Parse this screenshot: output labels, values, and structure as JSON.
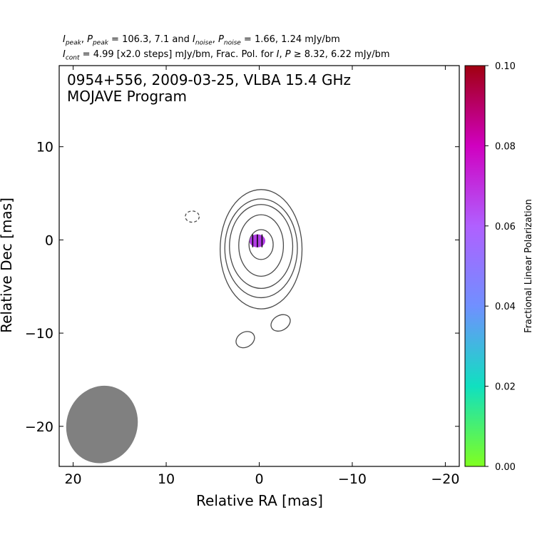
{
  "header": {
    "line1": {
      "i_peak_sym": "I",
      "i_peak_sub": "peak",
      "p_peak_sym": "P",
      "p_peak_sub": "peak",
      "peak_text": " = 106.3, 7.1 and ",
      "i_noise_sym": "I",
      "i_noise_sub": "noise",
      "p_noise_sym": "P",
      "p_noise_sub": "noise",
      "noise_text": " = 1.66, 1.24 mJy/bm"
    },
    "line2": {
      "i_cont_sym": "I",
      "i_cont_sub": "cont",
      "cont_text": " = 4.99 [x2.0 steps] mJy/bm, Frac. Pol. for ",
      "i_sym": "I",
      "p_sym": "P",
      "thresh_text": " ≥ 8.32, 6.22 mJy/bm"
    }
  },
  "chart_data": {
    "type": "contour",
    "title_line1": "0954+556, 2009-03-25, VLBA 15.4 GHz",
    "title_line2": "MOJAVE Program",
    "xlabel": "Relative RA [mas]",
    "ylabel": "Relative Dec [mas]",
    "xlim": [
      21.5,
      -21.5
    ],
    "ylim": [
      -24.3,
      18.7
    ],
    "xticks": [
      20,
      10,
      0,
      -10,
      -20
    ],
    "yticks": [
      10,
      0,
      -10,
      -20
    ],
    "xtick_labels": [
      "20",
      "10",
      "0",
      "−10",
      "−20"
    ],
    "ytick_labels": [
      "10",
      "0",
      "−10",
      "−20"
    ],
    "grid": false,
    "contour_color": "#4a4a4a",
    "contours": [
      {
        "level": 1,
        "cx": -0.2,
        "cy": -1.0,
        "rx": 4.4,
        "ry": 6.4
      },
      {
        "level": 2,
        "cx": -0.2,
        "cy": -0.9,
        "rx": 3.9,
        "ry": 5.3
      },
      {
        "level": 3,
        "cx": -0.2,
        "cy": -0.7,
        "rx": 3.4,
        "ry": 4.5
      },
      {
        "level": 4,
        "cx": -0.2,
        "cy": -0.6,
        "rx": 2.4,
        "ry": 3.3
      },
      {
        "level": 5,
        "cx": -0.2,
        "cy": -0.5,
        "rx": 1.3,
        "ry": 1.6
      }
    ],
    "small_contours": [
      {
        "cx": 7.2,
        "cy": 2.5,
        "rx": 0.75,
        "ry": 0.6,
        "angle": 0,
        "dashed": true
      },
      {
        "cx": -2.3,
        "cy": -8.9,
        "rx": 1.1,
        "ry": 0.8,
        "angle": -30,
        "dashed": false
      },
      {
        "cx": 1.5,
        "cy": -10.7,
        "rx": 1.05,
        "ry": 0.8,
        "angle": -30,
        "dashed": false
      }
    ],
    "beam": {
      "cx": 16.9,
      "cy": -19.8,
      "major": 4.2,
      "minor": 3.8,
      "angle": 20,
      "color": "#808080"
    },
    "polarization": {
      "cx": 0.2,
      "cy": -0.1,
      "rx": 0.85,
      "ry": 0.7,
      "frac_pol": 0.07,
      "color": "#b03de3"
    },
    "colorbar": {
      "label": "Fractional Linear Polarization",
      "min": 0.0,
      "max": 0.1,
      "ticks": [
        0.0,
        0.02,
        0.04,
        0.06,
        0.08,
        0.1
      ],
      "tick_labels": [
        "0.00",
        "0.02",
        "0.04",
        "0.06",
        "0.08",
        "0.10"
      ],
      "colors": [
        "#80ff20",
        "#10e0c0",
        "#7090ff",
        "#b060ff",
        "#d000c0",
        "#a00010"
      ]
    }
  }
}
